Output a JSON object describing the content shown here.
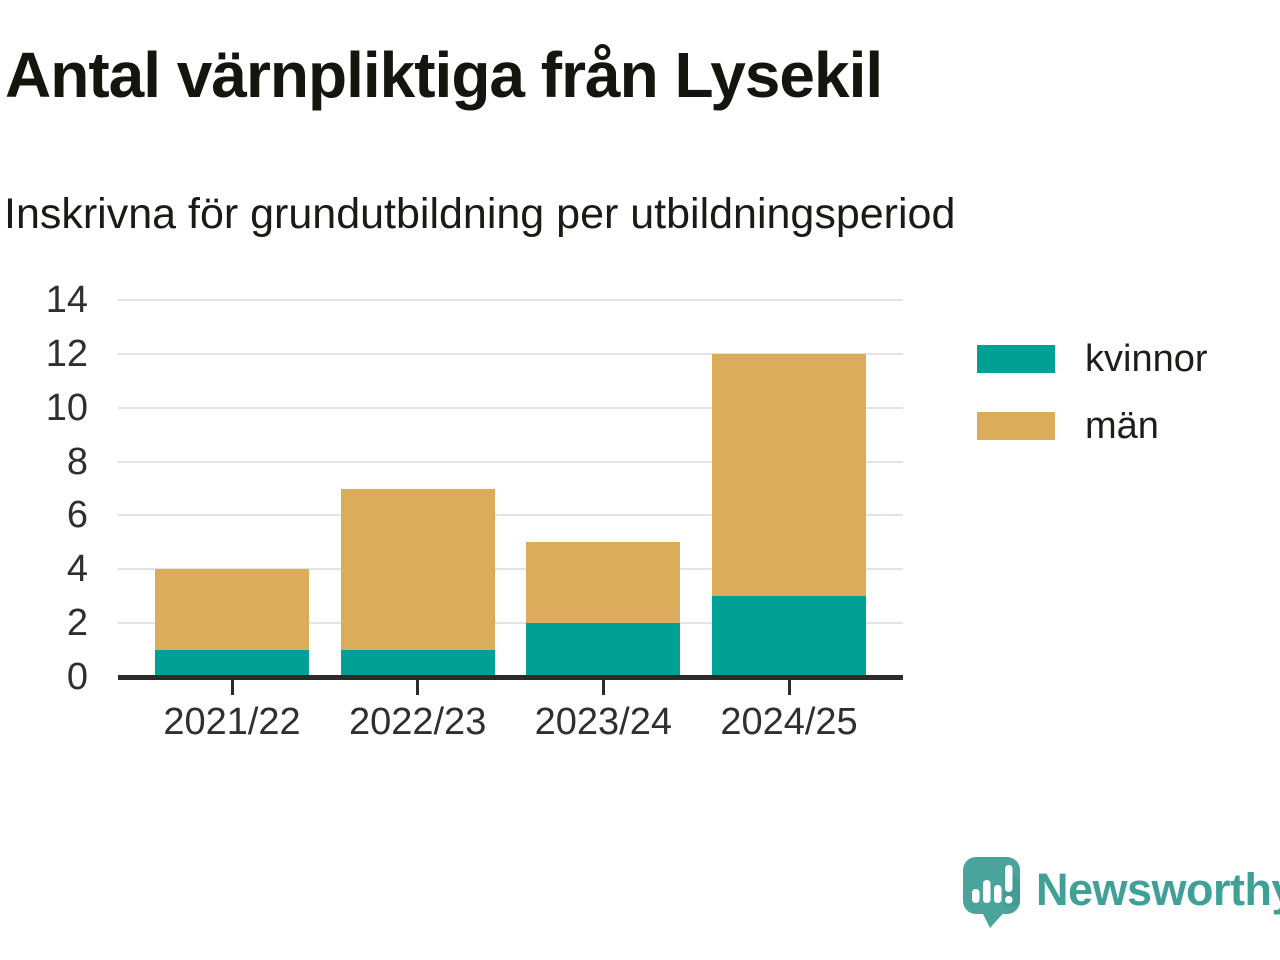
{
  "chart_data": {
    "type": "bar",
    "stacked": true,
    "title": "Antal värnpliktiga från Lysekil",
    "subtitle": "Inskrivna för grundutbildning per utbildningsperiod",
    "xlabel": "",
    "ylabel": "",
    "categories": [
      "2021/22",
      "2022/23",
      "2023/24",
      "2024/25"
    ],
    "series": [
      {
        "name": "kvinnor",
        "color": "#00A096",
        "values": [
          1,
          1,
          2,
          3
        ]
      },
      {
        "name": "män",
        "color": "#DBAC59",
        "values": [
          3,
          6,
          3,
          9
        ]
      }
    ],
    "totals": [
      4,
      7,
      5,
      12
    ],
    "ylim": [
      0,
      14
    ],
    "yticks": [
      0,
      2,
      4,
      6,
      8,
      10,
      12,
      14
    ],
    "grid": true,
    "legend_position": "right"
  },
  "branding": {
    "name": "Newsworthy",
    "wordmark_color": "#3FA096",
    "icon": "speech-bubble-bar-chart",
    "icon_color": "#4BA49C",
    "icon_shadow_color": "#3E958D",
    "icon_glyph_color": "#FFFFFF"
  }
}
